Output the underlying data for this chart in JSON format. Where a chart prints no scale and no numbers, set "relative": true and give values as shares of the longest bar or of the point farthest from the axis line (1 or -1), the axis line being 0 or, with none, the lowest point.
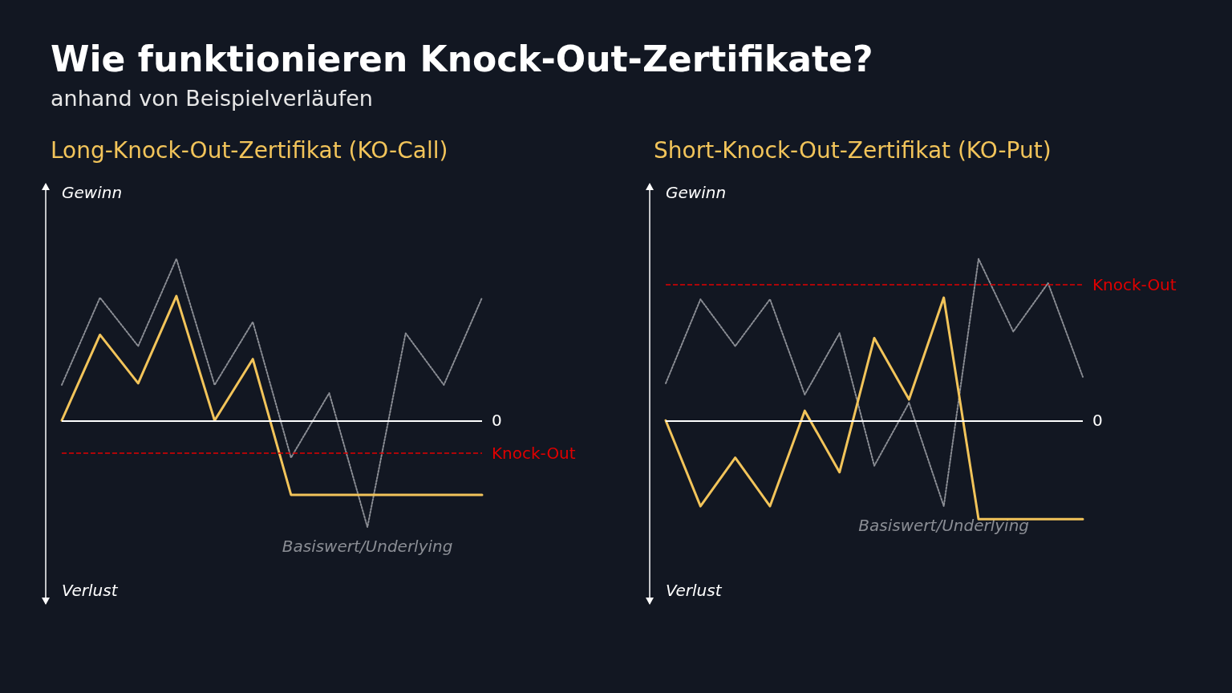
{
  "chart_data": [
    {
      "type": "other",
      "title": "Wie funktionieren Knock-Out-Zertifikate?",
      "subtitle": "anhand von Beispielverläufen"
    },
    {
      "type": "line",
      "title": "Long-Knock-Out-Zertifikat (KO-Call)",
      "relative": true,
      "grid": false,
      "marker": "none",
      "categories": [
        null,
        null,
        null,
        null,
        null,
        null,
        null,
        null,
        null,
        null,
        null,
        null
      ],
      "series": [
        {
          "name": "Basiswert/Underlying",
          "color": "#8a8d94",
          "line_style": "dotted",
          "values": [
            0.22,
            0.76,
            0.46,
            1,
            0.22,
            0.61,
            -0.23,
            0.17,
            -0.66,
            0.54,
            0.22,
            0.76
          ]
        },
        {
          "color": "#f2c45a",
          "line_style": "solid",
          "values": [
            0,
            0.53,
            0.23,
            0.77,
            0,
            0.38,
            -0.46,
            -0.46,
            -0.46,
            -0.46,
            -0.46,
            -0.46
          ]
        }
      ],
      "ref_lines": [
        {
          "axis": "y",
          "value": 0,
          "label": "0",
          "color": "#ffffff",
          "line_style": "solid"
        },
        {
          "axis": "y",
          "value": -0.2,
          "label": "Knock-Out",
          "color": "#e00000",
          "line_style": "dashed"
        }
      ],
      "annotations": [
        "Gewinn",
        "Verlust"
      ]
    },
    {
      "type": "line",
      "title": "Short-Knock-Out-Zertifikat (KO-Put)",
      "relative": true,
      "grid": false,
      "marker": "none",
      "categories": [
        null,
        null,
        null,
        null,
        null,
        null,
        null,
        null,
        null,
        null,
        null,
        null,
        null
      ],
      "series": [
        {
          "name": "Basiswert/Underlying",
          "color": "#8a8d94",
          "line_style": "dotted",
          "values": [
            0.23,
            0.75,
            0.46,
            0.75,
            0.16,
            0.54,
            -0.28,
            0.11,
            -0.53,
            1,
            0.55,
            0.85,
            0.27
          ]
        },
        {
          "color": "#f2c45a",
          "line_style": "solid",
          "values": [
            0,
            -0.53,
            -0.23,
            -0.53,
            0.06,
            -0.32,
            0.51,
            0.13,
            0.76,
            -0.61,
            -0.61,
            -0.61,
            -0.61
          ]
        }
      ],
      "ref_lines": [
        {
          "axis": "y",
          "value": 0,
          "label": "0",
          "color": "#ffffff",
          "line_style": "solid"
        },
        {
          "axis": "y",
          "value": 0.84,
          "label": "Knock-Out",
          "color": "#e00000",
          "line_style": "dashed"
        }
      ],
      "annotations": [
        "Gewinn",
        "Verlust"
      ]
    }
  ]
}
